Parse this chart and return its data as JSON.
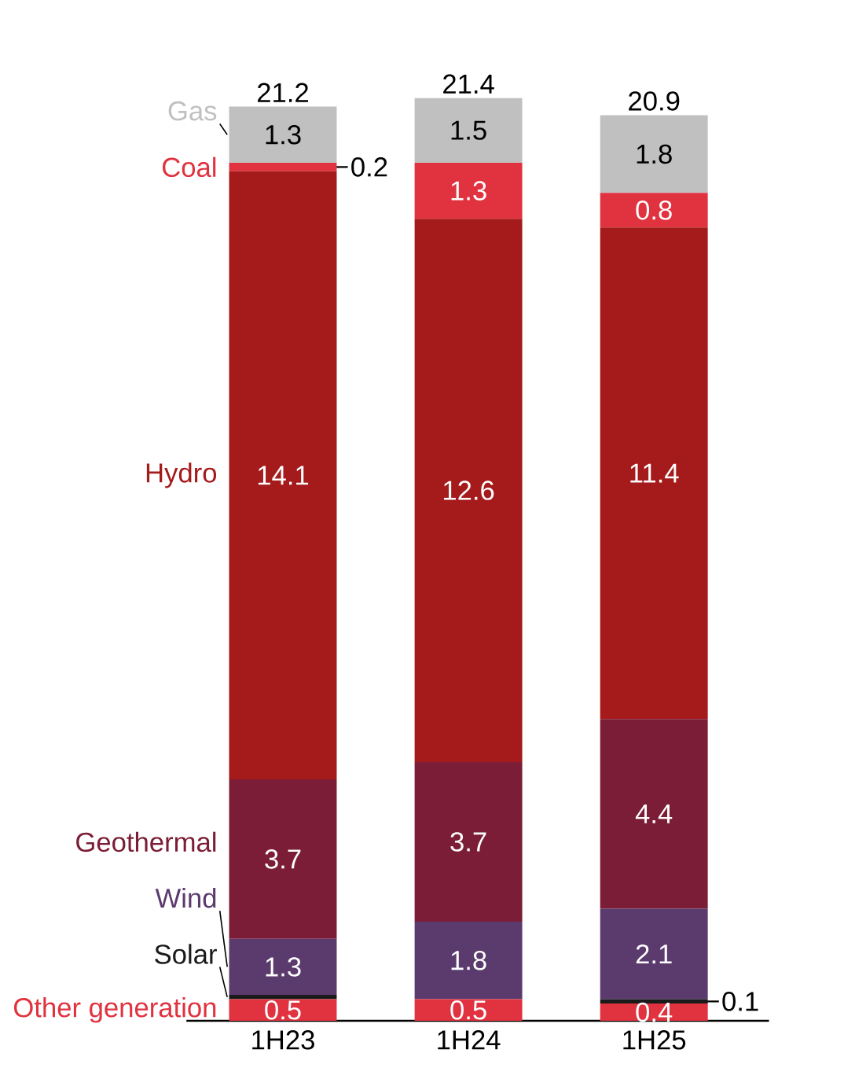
{
  "chart_data": {
    "type": "bar",
    "stacked": true,
    "categories": [
      "1H23",
      "1H24",
      "1H25"
    ],
    "totals": [
      "21.2",
      "21.4",
      "20.9"
    ],
    "series": [
      {
        "name": "Other generation",
        "color": "#e0323f",
        "values": [
          0.5,
          0.5,
          0.4
        ],
        "value_labels": [
          "0.5",
          "0.5",
          "0.4"
        ]
      },
      {
        "name": "Solar",
        "color": "#1a1a1a",
        "values": [
          0.1,
          0,
          0.1
        ],
        "value_labels": [
          null,
          null,
          "0.1"
        ]
      },
      {
        "name": "Wind",
        "color": "#5b3a6e",
        "values": [
          1.3,
          1.8,
          2.1
        ],
        "value_labels": [
          "1.3",
          "1.8",
          "2.1"
        ]
      },
      {
        "name": "Geothermal",
        "color": "#7b1d36",
        "values": [
          3.7,
          3.7,
          4.4
        ],
        "value_labels": [
          "3.7",
          "3.7",
          "4.4"
        ]
      },
      {
        "name": "Hydro",
        "color": "#a51a1a",
        "values": [
          14.1,
          12.6,
          11.4
        ],
        "value_labels": [
          "14.1",
          "12.6",
          "11.4"
        ]
      },
      {
        "name": "Coal",
        "color": "#e0323f",
        "values": [
          0.2,
          1.3,
          0.8
        ],
        "value_labels": [
          "0.2",
          "1.3",
          "0.8"
        ]
      },
      {
        "name": "Gas",
        "color": "#c0c0c0",
        "values": [
          1.3,
          1.5,
          1.8
        ],
        "value_labels": [
          "1.3",
          "1.5",
          "1.8"
        ]
      }
    ]
  }
}
